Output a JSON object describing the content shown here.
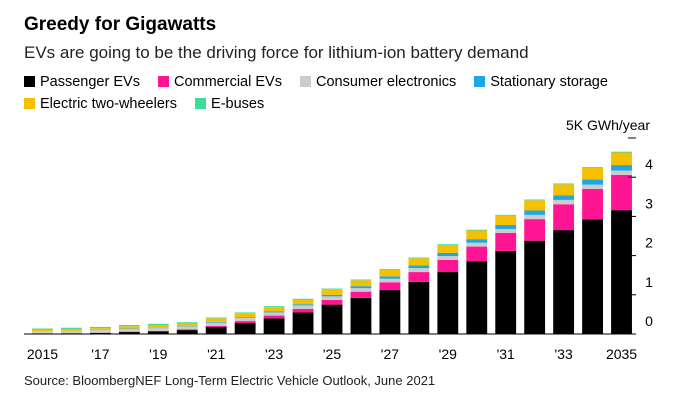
{
  "chart_data": {
    "type": "bar",
    "stacked": true,
    "title": "Greedy for Gigawatts",
    "subtitle": "EVs are going to be the driving force for lithium-ion battery demand",
    "yunit_label": "5K GWh/year",
    "source": "Source: BloombergNEF Long-Term Electric Vehicle Outlook, June 2021",
    "ylim": [
      0,
      5
    ],
    "yticks": [
      "0",
      "1",
      "2",
      "3",
      "4"
    ],
    "x": [
      "2015",
      "2016",
      "2017",
      "2018",
      "2019",
      "2020",
      "2021",
      "2022",
      "2023",
      "2024",
      "2025",
      "2026",
      "2027",
      "2028",
      "2029",
      "2030",
      "2031",
      "2032",
      "2033",
      "2034",
      "2035"
    ],
    "xtick_labels": [
      "2015",
      "",
      "'17",
      "",
      "'19",
      "",
      "'21",
      "",
      "'23",
      "",
      "'25",
      "",
      "'27",
      "",
      "'29",
      "",
      "'31",
      "",
      "'33",
      "",
      "2035"
    ],
    "series": [
      {
        "name": "Passenger EVs",
        "color": "#000000",
        "values": [
          0.01,
          0.02,
          0.03,
          0.05,
          0.07,
          0.1,
          0.18,
          0.28,
          0.4,
          0.55,
          0.75,
          0.92,
          1.12,
          1.33,
          1.58,
          1.85,
          2.12,
          2.38,
          2.65,
          2.92,
          3.16
        ]
      },
      {
        "name": "Commercial EVs",
        "color": "#ff1493",
        "values": [
          0.0,
          0.0,
          0.0,
          0.01,
          0.01,
          0.02,
          0.03,
          0.05,
          0.07,
          0.09,
          0.12,
          0.16,
          0.2,
          0.25,
          0.31,
          0.38,
          0.46,
          0.55,
          0.66,
          0.78,
          0.9
        ]
      },
      {
        "name": "Consumer electronics",
        "color": "#cccccc",
        "values": [
          0.06,
          0.06,
          0.07,
          0.07,
          0.07,
          0.07,
          0.08,
          0.08,
          0.08,
          0.09,
          0.09,
          0.09,
          0.09,
          0.1,
          0.1,
          0.1,
          0.1,
          0.11,
          0.11,
          0.11,
          0.11
        ]
      },
      {
        "name": "Stationary storage",
        "color": "#1ea7e6",
        "values": [
          0.0,
          0.0,
          0.0,
          0.01,
          0.01,
          0.01,
          0.02,
          0.02,
          0.03,
          0.03,
          0.04,
          0.05,
          0.06,
          0.07,
          0.08,
          0.09,
          0.1,
          0.11,
          0.12,
          0.13,
          0.14
        ]
      },
      {
        "name": "Electric two-wheelers",
        "color": "#f5c000",
        "values": [
          0.04,
          0.05,
          0.05,
          0.06,
          0.07,
          0.07,
          0.09,
          0.1,
          0.11,
          0.12,
          0.14,
          0.15,
          0.17,
          0.18,
          0.2,
          0.22,
          0.24,
          0.26,
          0.28,
          0.3,
          0.32
        ]
      },
      {
        "name": "E-buses",
        "color": "#3ddc97",
        "values": [
          0.03,
          0.03,
          0.03,
          0.03,
          0.03,
          0.03,
          0.02,
          0.02,
          0.02,
          0.02,
          0.02,
          0.02,
          0.02,
          0.02,
          0.02,
          0.02,
          0.02,
          0.02,
          0.02,
          0.02,
          0.02
        ]
      }
    ]
  }
}
